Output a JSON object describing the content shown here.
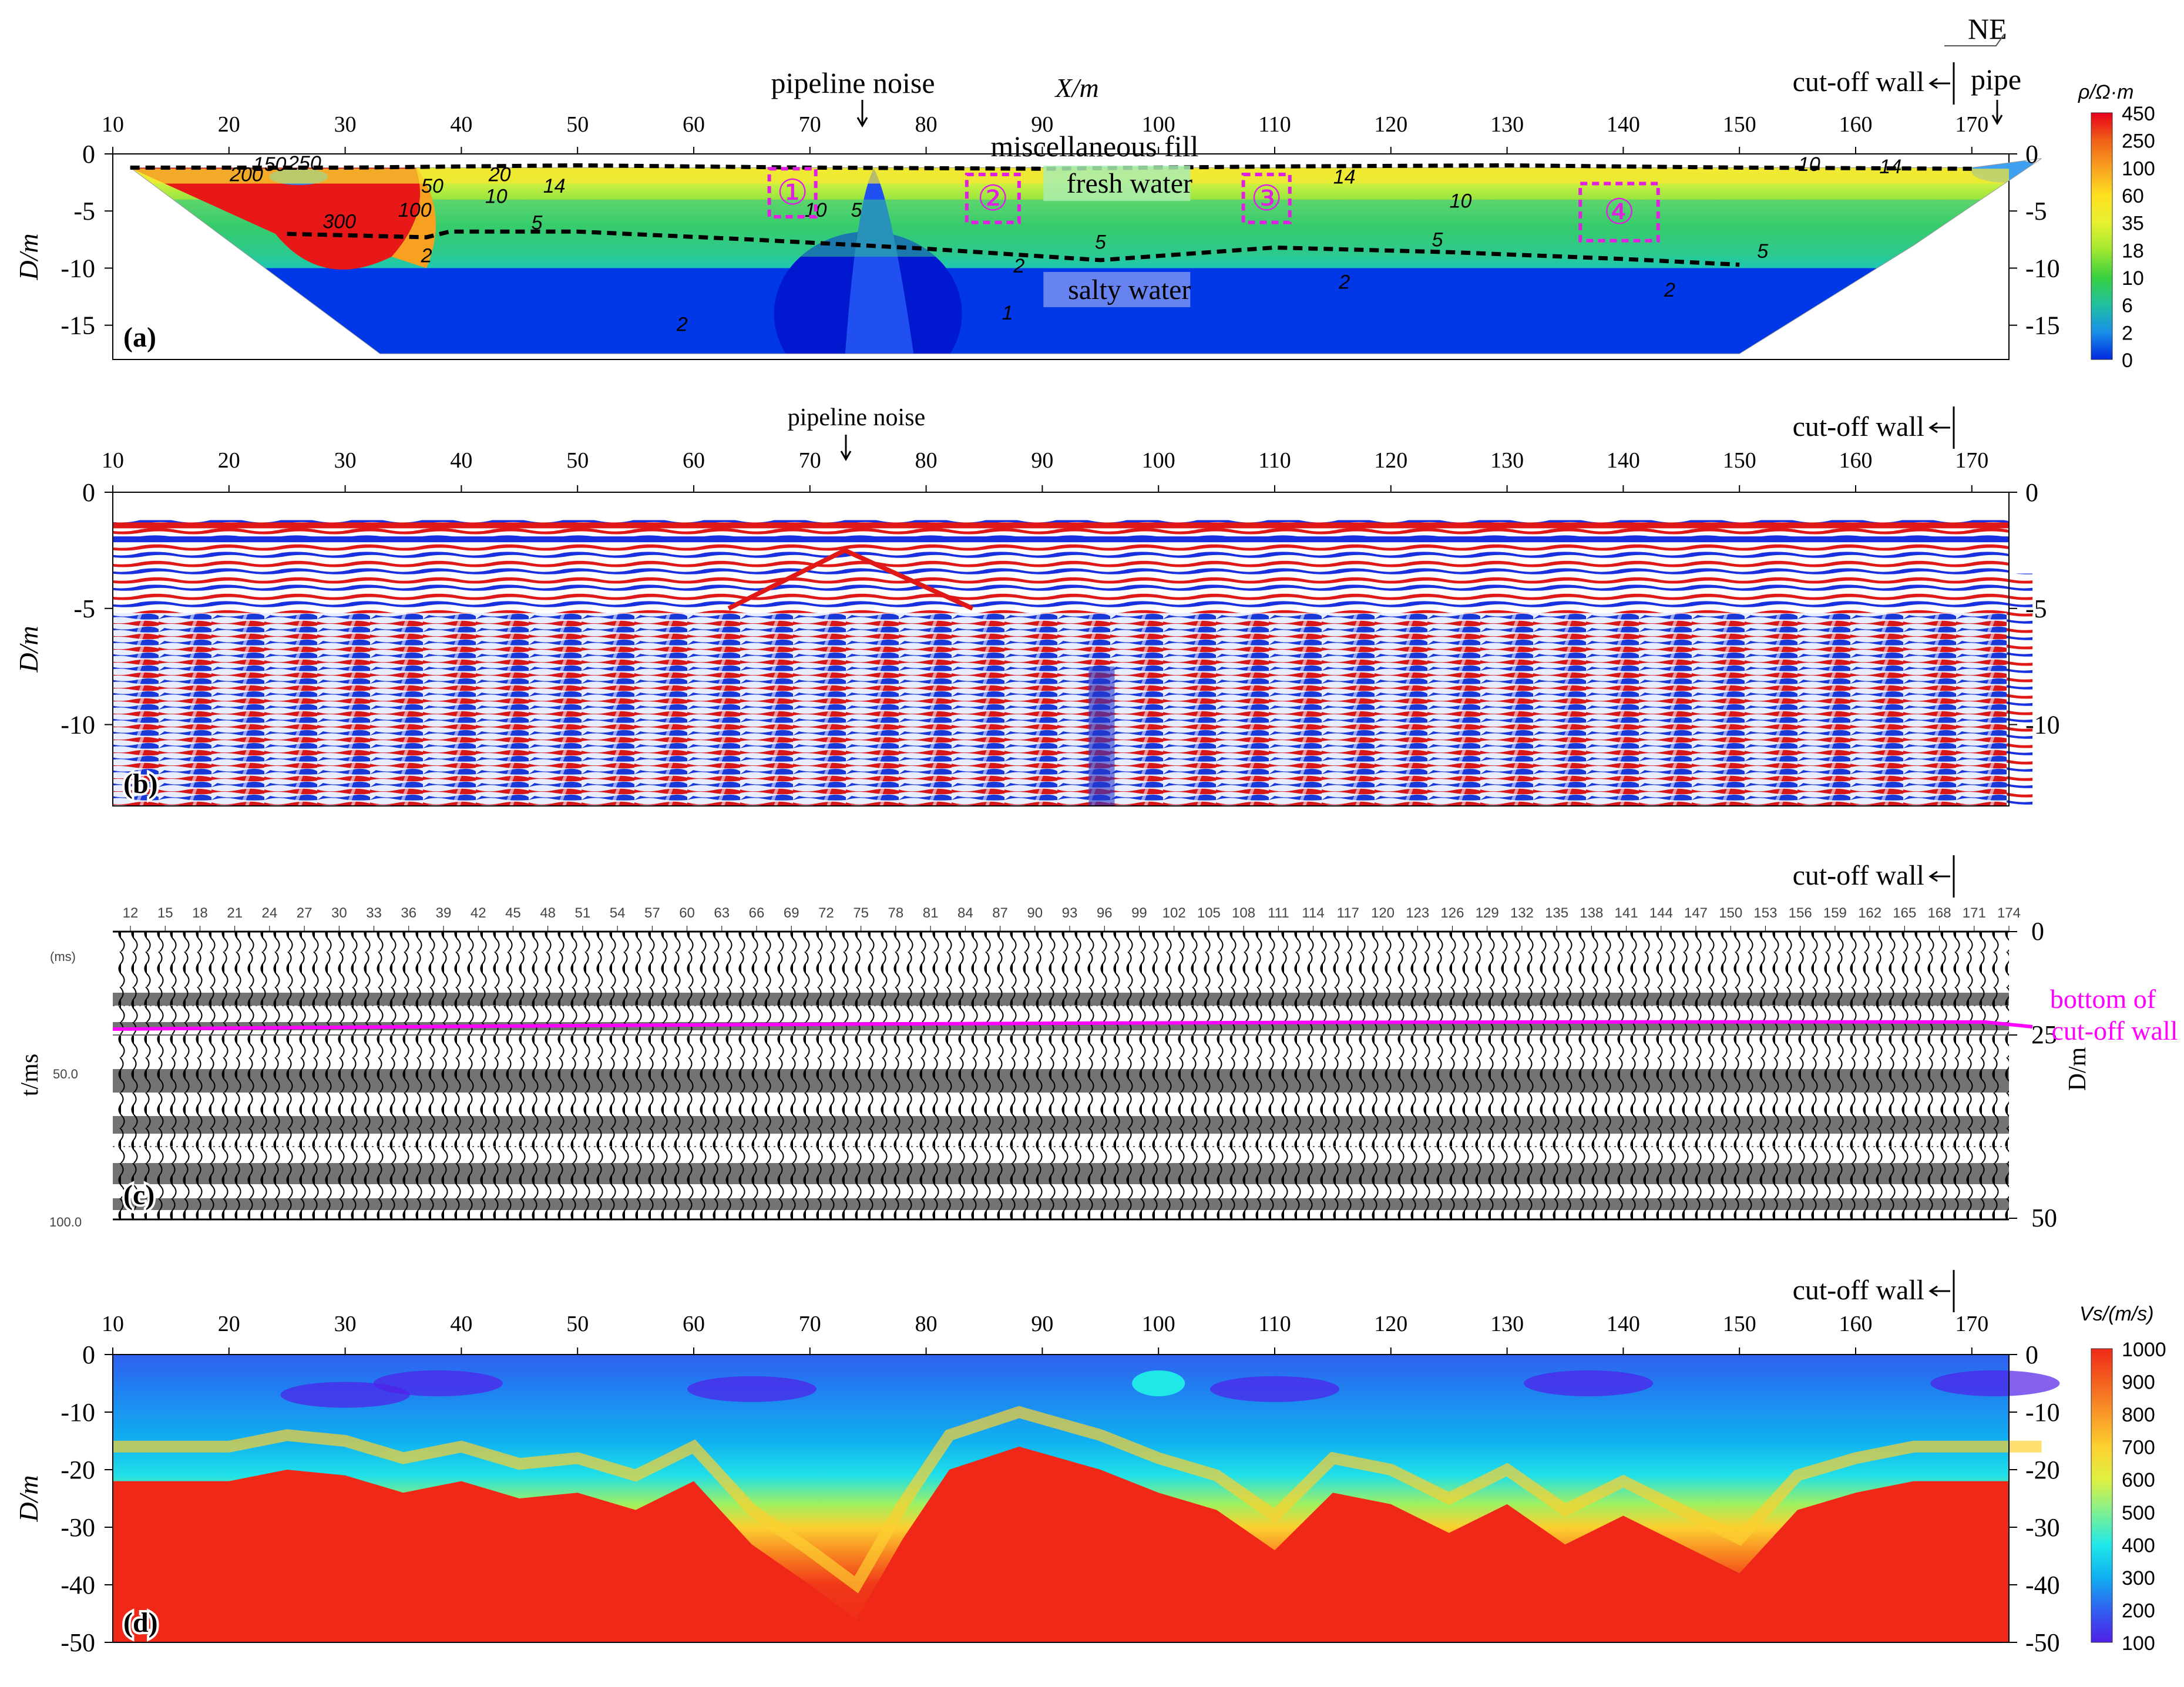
{
  "chart_data": [
    {
      "panel_label": "(a)",
      "type": "heatmap",
      "xlabel": "X/m",
      "ylabel": "D/m",
      "x_ticks": [
        "10",
        "20",
        "30",
        "40",
        "50",
        "60",
        "70",
        "80",
        "90",
        "100",
        "110",
        "120",
        "130",
        "140",
        "150",
        "160",
        "170"
      ],
      "y_ticks_left": [
        "0",
        "-5",
        "-10",
        "-15"
      ],
      "y_ticks_right": [
        "0",
        "-5",
        "-10",
        "-15"
      ],
      "x_range": [
        10,
        176
      ],
      "y_range": [
        -18,
        0
      ],
      "colorbar_label": "ρ/Ω·m",
      "colorbar_ticks": [
        "450",
        "250",
        "100",
        "60",
        "35",
        "18",
        "10",
        "6",
        "2",
        "0"
      ],
      "colorbar_colors": [
        "#e8001a",
        "#f06018",
        "#f8a020",
        "#ffe020",
        "#e8f030",
        "#a0e830",
        "#38d040",
        "#20c0a0",
        "#1890e8",
        "#0028e0"
      ],
      "section_outline": [
        [
          11.5,
          -1.2
        ],
        [
          170,
          -1.2
        ],
        [
          176,
          -0.4
        ],
        [
          165,
          -8
        ],
        [
          150,
          -17.5
        ],
        [
          33,
          -17.5
        ],
        [
          11.5,
          -1.2
        ]
      ],
      "depth_by_x": [
        [
          10,
          -1
        ],
        [
          33,
          -17.5
        ],
        [
          150,
          -17.5
        ],
        [
          176,
          -0.2
        ]
      ],
      "contour_labels": [
        {
          "x": 21.5,
          "y": -2.4,
          "text": "200"
        },
        {
          "x": 23.5,
          "y": -1.5,
          "text": "150"
        },
        {
          "x": 26.5,
          "y": -1.4,
          "text": "250"
        },
        {
          "x": 29.5,
          "y": -6.5,
          "text": "300"
        },
        {
          "x": 36,
          "y": -5.5,
          "text": "100"
        },
        {
          "x": 37.5,
          "y": -3.4,
          "text": "50"
        },
        {
          "x": 37,
          "y": -9.5,
          "text": "2"
        },
        {
          "x": 43.3,
          "y": -2.4,
          "text": "20"
        },
        {
          "x": 43,
          "y": -4.3,
          "text": "10"
        },
        {
          "x": 48,
          "y": -3.4,
          "text": "14"
        },
        {
          "x": 46.5,
          "y": -6.6,
          "text": "5"
        },
        {
          "x": 70.5,
          "y": -5.5,
          "text": "10"
        },
        {
          "x": 74,
          "y": -5.5,
          "text": "5"
        },
        {
          "x": 88,
          "y": -10.4,
          "text": "2"
        },
        {
          "x": 87,
          "y": -14.5,
          "text": "1"
        },
        {
          "x": 95,
          "y": -8.3,
          "text": "5"
        },
        {
          "x": 116,
          "y": -2.6,
          "text": "14"
        },
        {
          "x": 126,
          "y": -4.7,
          "text": "10"
        },
        {
          "x": 124,
          "y": -8.1,
          "text": "5"
        },
        {
          "x": 116,
          "y": -11.8,
          "text": "2"
        },
        {
          "x": 152,
          "y": -9.1,
          "text": "5"
        },
        {
          "x": 156,
          "y": -1.5,
          "text": "10"
        },
        {
          "x": 163,
          "y": -1.7,
          "text": "14"
        },
        {
          "x": 144,
          "y": -12.5,
          "text": "2"
        },
        {
          "x": 59,
          "y": -15.5,
          "text": "2"
        }
      ],
      "top_boundary": [
        [
          11.5,
          -1.2
        ],
        [
          30,
          -1.2
        ],
        [
          50,
          -1.0
        ],
        [
          70,
          -1.2
        ],
        [
          90,
          -1.3
        ],
        [
          110,
          -1.1
        ],
        [
          130,
          -1.0
        ],
        [
          150,
          -1.2
        ],
        [
          170,
          -1.3
        ]
      ],
      "water_boundary": [
        [
          25,
          -7
        ],
        [
          37,
          -7.3
        ],
        [
          39,
          -6.8
        ],
        [
          50,
          -6.8
        ],
        [
          65,
          -7.5
        ],
        [
          80,
          -8.3
        ],
        [
          95,
          -9.3
        ],
        [
          110,
          -8.2
        ],
        [
          125,
          -8.6
        ],
        [
          140,
          -9.2
        ],
        [
          150,
          -9.7
        ]
      ],
      "anomaly_boxes": [
        {
          "id": "①",
          "x": [
            66.5,
            70.5
          ],
          "y": [
            -1.3,
            -5.5
          ]
        },
        {
          "id": "②",
          "x": [
            83.5,
            88
          ],
          "y": [
            -1.8,
            -6.0
          ]
        },
        {
          "id": "③",
          "x": [
            107.3,
            111.3
          ],
          "y": [
            -1.8,
            -6.0
          ]
        },
        {
          "id": "④",
          "x": [
            136.3,
            143
          ],
          "y": [
            -2.6,
            -7.6
          ]
        }
      ],
      "region_labels": {
        "fill": "miscellaneous fill",
        "fresh": "fresh water",
        "salty": "salty water"
      },
      "annotations": {
        "pipeline_noise": "pipeline noise",
        "cutoff_wall": "cut-off wall",
        "pipe": "pipe",
        "north": "NE"
      }
    },
    {
      "panel_label": "(b)",
      "type": "heatmap",
      "ylabel": "D/m",
      "x_ticks": [
        "10",
        "20",
        "30",
        "40",
        "50",
        "60",
        "70",
        "80",
        "90",
        "100",
        "110",
        "120",
        "130",
        "140",
        "150",
        "160",
        "170"
      ],
      "y_ticks_left": [
        "0",
        "-5",
        "-10"
      ],
      "y_ticks_right": [
        "0",
        "-5",
        "-10"
      ],
      "x_range": [
        10,
        176
      ],
      "y_range": [
        -13.5,
        0
      ],
      "annotations": {
        "pipeline_noise": "pipeline noise",
        "cutoff_wall": "cut-off wall"
      }
    },
    {
      "panel_label": "(c)",
      "type": "heatmap",
      "ylabel_left": "t/ms",
      "ylabel_right": "D/m",
      "trace_labels": [
        "12",
        "15",
        "18",
        "21",
        "24",
        "27",
        "30",
        "33",
        "36",
        "39",
        "42",
        "45",
        "48",
        "51",
        "54",
        "57",
        "60",
        "63",
        "66",
        "69",
        "72",
        "75",
        "78",
        "81",
        "84",
        "87",
        "90",
        "93",
        "96",
        "99",
        "102",
        "105",
        "108",
        "111",
        "114",
        "117",
        "120",
        "123",
        "126",
        "129",
        "132",
        "135",
        "138",
        "141",
        "144",
        "147",
        "150",
        "153",
        "156",
        "159",
        "162",
        "165",
        "168",
        "171",
        "174"
      ],
      "t_ticks": [
        "(ms)",
        "50.0",
        "100.0"
      ],
      "d_ticks": [
        "0",
        "25",
        "50"
      ],
      "t_range": [
        0,
        100
      ],
      "annotations": {
        "cutoff_wall": "cut-off wall",
        "bottom_line1": "bottom of",
        "bottom_line2": "cut-off wall"
      }
    },
    {
      "panel_label": "(d)",
      "type": "heatmap",
      "ylabel": "D/m",
      "x_ticks": [
        "10",
        "20",
        "30",
        "40",
        "50",
        "60",
        "70",
        "80",
        "90",
        "100",
        "110",
        "120",
        "130",
        "140",
        "150",
        "160",
        "170"
      ],
      "y_ticks_left": [
        "0",
        "-10",
        "-20",
        "-30",
        "-40",
        "-50"
      ],
      "y_ticks_right": [
        "0",
        "-10",
        "-20",
        "-30",
        "-40",
        "-50"
      ],
      "x_range": [
        10,
        176
      ],
      "y_range": [
        -50,
        0
      ],
      "colorbar_label": "Vs/(m/s)",
      "colorbar_ticks": [
        "1000",
        "900",
        "800",
        "700",
        "600",
        "500",
        "400",
        "300",
        "200",
        "100"
      ],
      "colorbar_colors": [
        "#f02818",
        "#f46020",
        "#f89828",
        "#fcd030",
        "#e0f040",
        "#80f090",
        "#20e8e8",
        "#10b0f0",
        "#3060f0",
        "#5020e8"
      ],
      "interface_depth": [
        [
          10,
          -22
        ],
        [
          20,
          -22
        ],
        [
          25,
          -20
        ],
        [
          30,
          -21
        ],
        [
          35,
          -24
        ],
        [
          40,
          -22
        ],
        [
          45,
          -25
        ],
        [
          50,
          -24
        ],
        [
          55,
          -27
        ],
        [
          60,
          -22
        ],
        [
          65,
          -33
        ],
        [
          70,
          -40
        ],
        [
          74,
          -46
        ],
        [
          78,
          -32
        ],
        [
          82,
          -20
        ],
        [
          88,
          -16
        ],
        [
          95,
          -20
        ],
        [
          100,
          -24
        ],
        [
          105,
          -27
        ],
        [
          110,
          -34
        ],
        [
          115,
          -24
        ],
        [
          120,
          -26
        ],
        [
          125,
          -31
        ],
        [
          130,
          -26
        ],
        [
          135,
          -33
        ],
        [
          140,
          -28
        ],
        [
          145,
          -33
        ],
        [
          150,
          -38
        ],
        [
          155,
          -27
        ],
        [
          160,
          -24
        ],
        [
          165,
          -22
        ],
        [
          176,
          -22
        ]
      ],
      "annotations": {
        "cutoff_wall": "cut-off wall"
      }
    }
  ]
}
